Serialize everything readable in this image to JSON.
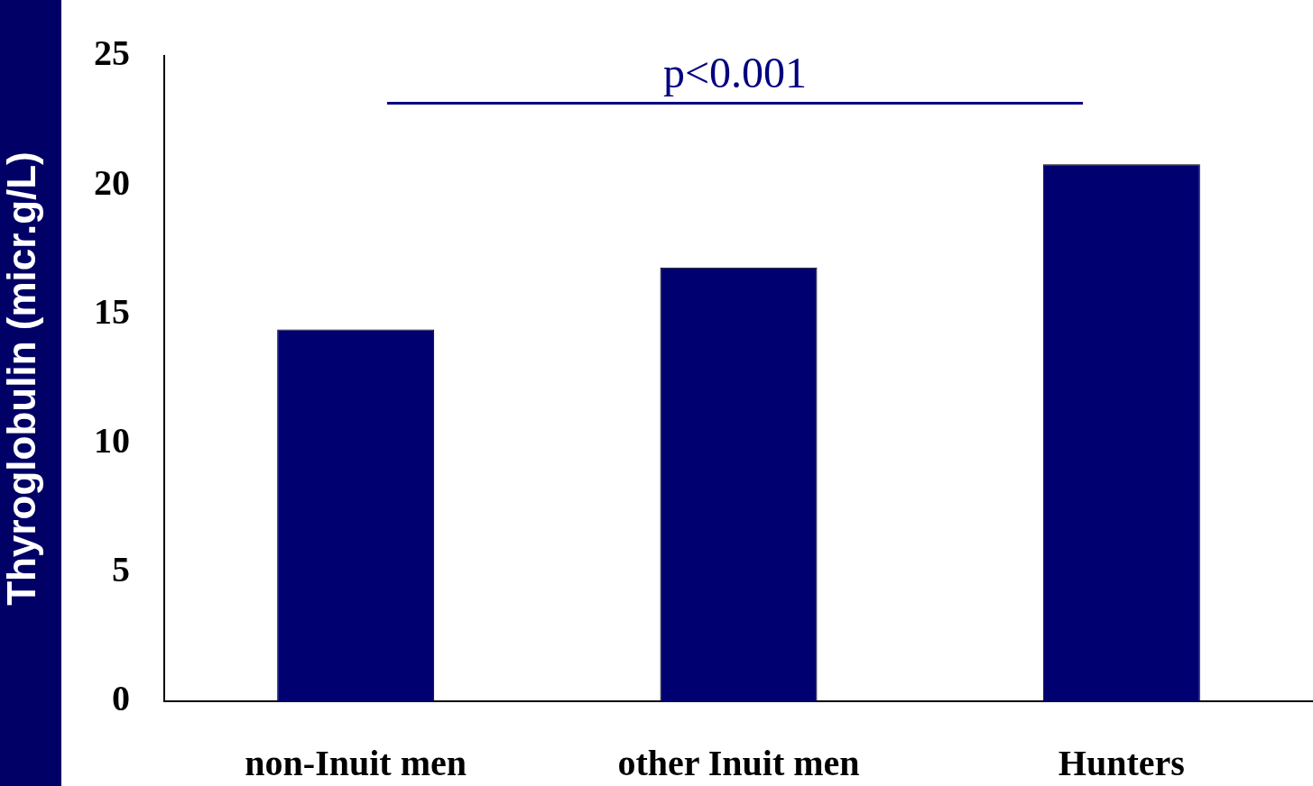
{
  "chart_data": {
    "type": "bar",
    "ylabel": "Thyroglobulin (micr.g/L)",
    "categories": [
      "non-Inuit men",
      "other Inuit men",
      "Hunters"
    ],
    "values": [
      14.4,
      16.8,
      20.8
    ],
    "color": "#000070",
    "ylim": [
      0,
      25
    ],
    "yticks": [
      0,
      5,
      10,
      15,
      20,
      25
    ],
    "grid": false,
    "legend": false,
    "annotations": [
      "p<0.001"
    ]
  }
}
